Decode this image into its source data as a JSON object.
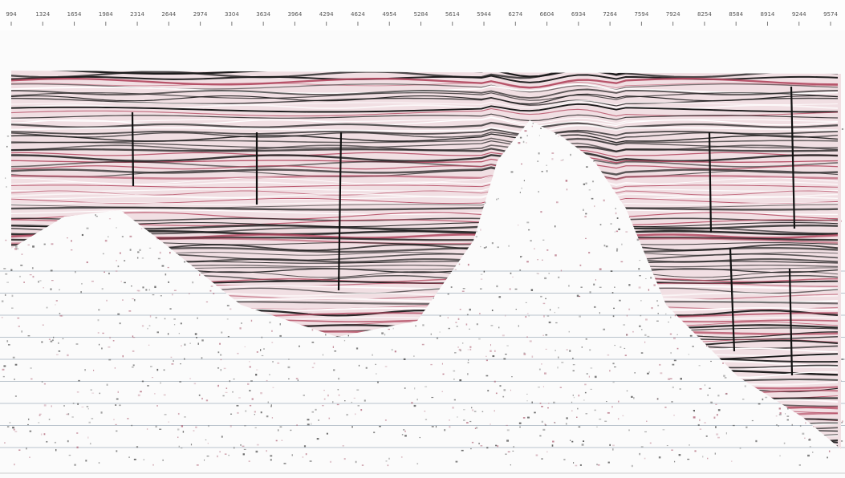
{
  "top_axis": {
    "ticks": [
      994,
      1324,
      1654,
      1984,
      2314,
      2644,
      2974,
      3304,
      3634,
      3964,
      4294,
      4624,
      4954,
      5284,
      5614,
      5944,
      6274,
      6604,
      6934,
      7264,
      7594,
      7924,
      8254,
      8584,
      8914,
      9244,
      9574
    ]
  }
}
